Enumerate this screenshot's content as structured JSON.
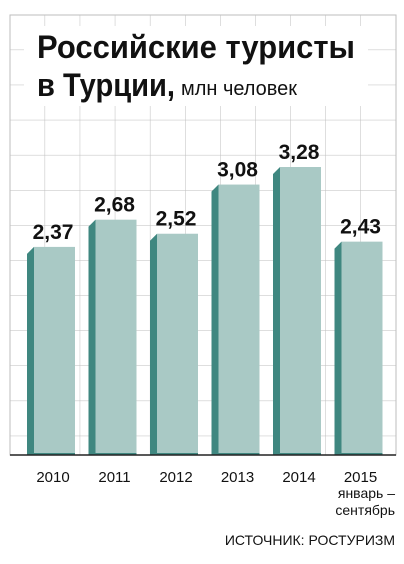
{
  "chart_data": {
    "type": "bar",
    "title": [
      "Российские туристы",
      "в Турции,"
    ],
    "subtitle": "млн человек",
    "categories": [
      "2010",
      "2011",
      "2012",
      "2013",
      "2014",
      "2015"
    ],
    "values": [
      2.37,
      2.68,
      2.52,
      3.08,
      3.28,
      2.43
    ],
    "value_labels": [
      "2,37",
      "2,68",
      "2,52",
      "3,08",
      "3,28",
      "2,43"
    ],
    "annotation": [
      "январь –",
      "сентябрь"
    ],
    "source": "ИСТОЧНИК: РОСТУРИЗМ",
    "color": "#a9c9c5",
    "depth_color": "#3f8780"
  }
}
